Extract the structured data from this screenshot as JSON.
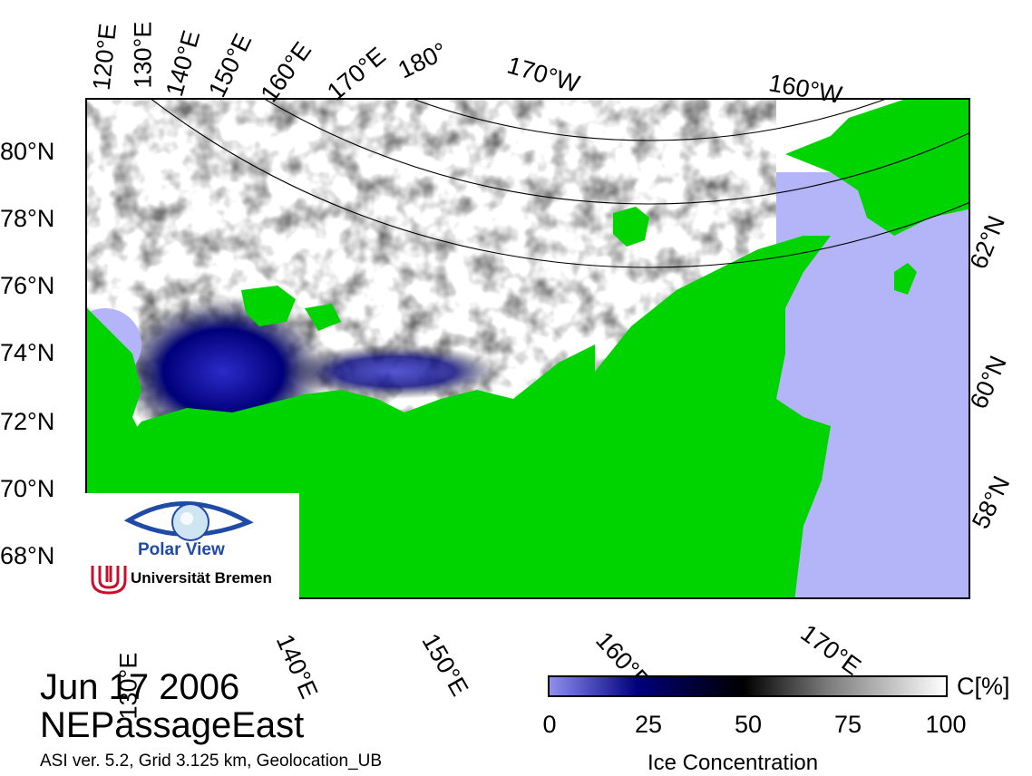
{
  "map": {
    "colors": {
      "land": "#00d400",
      "open_water": "#b4b4f8",
      "ice_high": "#ffffff",
      "ice_mid": "#000000",
      "ice_low": "#00007a",
      "ice_min": "#8f8ff0",
      "graticule": "#000000"
    },
    "top_longitudes": [
      "120°E",
      "130°E",
      "140°E",
      "150°E",
      "160°E",
      "170°E",
      "180°",
      "170°W",
      "160°W"
    ],
    "bottom_longitudes": [
      "130°E",
      "140°E",
      "150°E",
      "160°E",
      "170°E"
    ],
    "left_latitudes": [
      "80°N",
      "78°N",
      "76°N",
      "74°N",
      "72°N",
      "70°N",
      "68°N"
    ],
    "right_latitudes": [
      "62°N",
      "60°N",
      "58°N"
    ]
  },
  "logo": {
    "title": "Polar View",
    "institution": "Universität Bremen",
    "icon": "eye-globe-icon"
  },
  "caption": {
    "date": "Jun 17 2006",
    "region": "NEPassageEast",
    "meta": "ASI ver. 5.2,  Grid 3.125 km, Geolocation_UB"
  },
  "colorbar": {
    "ticks": [
      "0",
      "25",
      "50",
      "75",
      "100"
    ],
    "unit": "C[%]",
    "title": "Ice Concentration"
  }
}
